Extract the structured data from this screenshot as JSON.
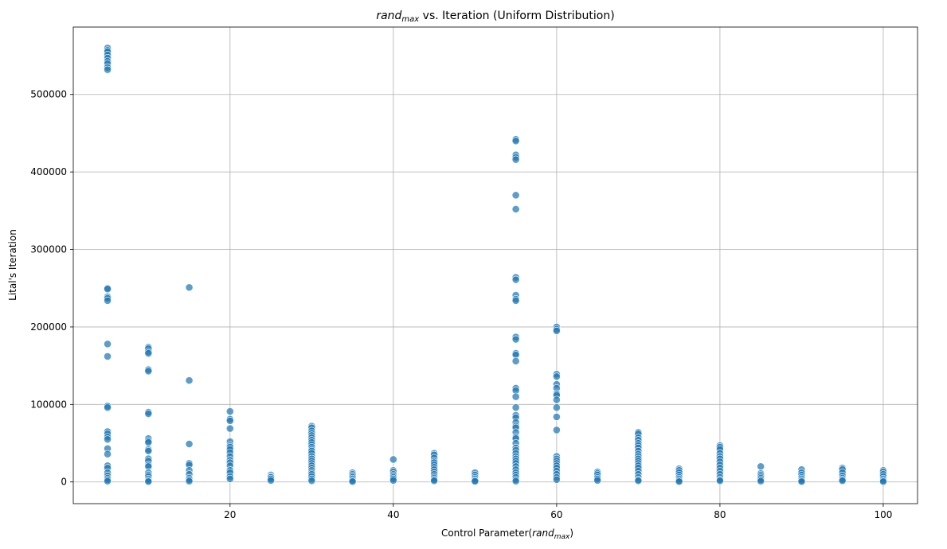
{
  "chart_data": {
    "type": "scatter",
    "title_italic": "rand",
    "title_sub": "max",
    "title_rest": " vs. Iteration (Uniform Distribution)",
    "xlabel_prefix": "Control Parameter(",
    "xlabel_italic": "rand",
    "xlabel_sub": "max",
    "xlabel_suffix": ")",
    "ylabel": "Lital's Iteration",
    "xlim": [
      0.8,
      104.2
    ],
    "ylim": [
      -28000,
      587000
    ],
    "xticks": [
      20,
      40,
      60,
      80,
      100
    ],
    "xtick_labels": [
      "20",
      "40",
      "60",
      "80",
      "100"
    ],
    "yticks": [
      0,
      100000,
      200000,
      300000,
      400000,
      500000
    ],
    "ytick_labels": [
      "0",
      "100000",
      "200000",
      "300000",
      "400000",
      "500000"
    ],
    "grid": true,
    "marker_color": "#1f77b4",
    "columns": [
      {
        "x": 5,
        "y": [
          560000,
          557000,
          555000,
          551000,
          547000,
          543000,
          540000,
          535000,
          532000,
          250000,
          249000,
          239000,
          237000,
          234000,
          178000,
          162000,
          98000,
          96000,
          65000,
          62000,
          58000,
          55000,
          43000,
          36000,
          21000,
          18000,
          12000,
          8000,
          5000,
          3000,
          1000
        ]
      },
      {
        "x": 10,
        "y": [
          174000,
          172000,
          168000,
          166000,
          145000,
          143000,
          90000,
          88000,
          56000,
          53000,
          51000,
          42000,
          40000,
          30000,
          27000,
          22000,
          20000,
          12000,
          9000,
          7000,
          4000,
          2000,
          500
        ]
      },
      {
        "x": 15,
        "y": [
          251000,
          131000,
          49000,
          24000,
          22000,
          15000,
          10000,
          5000,
          3000,
          1000
        ]
      },
      {
        "x": 20,
        "y": [
          91000,
          81000,
          79000,
          69000,
          52000,
          47000,
          45000,
          42000,
          38000,
          33000,
          28000,
          25000,
          21000,
          15000,
          12000,
          7000,
          4000
        ]
      },
      {
        "x": 25,
        "y": [
          9000,
          7000,
          6000,
          4000,
          2000
        ]
      },
      {
        "x": 30,
        "y": [
          72000,
          70000,
          66000,
          63000,
          60000,
          57000,
          54000,
          51000,
          48000,
          45000,
          42000,
          40000,
          37000,
          33000,
          30000,
          27000,
          24000,
          21000,
          18000,
          15000,
          12000,
          10000,
          7000,
          4000,
          1500
        ]
      },
      {
        "x": 35,
        "y": [
          12000,
          10000,
          8000,
          6000,
          4000,
          2000,
          500
        ]
      },
      {
        "x": 40,
        "y": [
          29000,
          15000,
          13000,
          10000,
          8000,
          6000,
          4000,
          2000
        ]
      },
      {
        "x": 45,
        "y": [
          37000,
          35000,
          31000,
          27000,
          25000,
          22000,
          19000,
          16000,
          13000,
          10000,
          7000,
          5000,
          3000,
          1500
        ]
      },
      {
        "x": 50,
        "y": [
          12000,
          9000,
          6000,
          4000,
          2000,
          800
        ]
      },
      {
        "x": 55,
        "y": [
          442000,
          440000,
          422000,
          419000,
          416000,
          370000,
          352000,
          264000,
          261000,
          241000,
          236000,
          234000,
          187000,
          184000,
          166000,
          164000,
          156000,
          121000,
          118000,
          110000,
          96000,
          86000,
          83000,
          77000,
          72000,
          70000,
          64000,
          58000,
          56000,
          50000,
          44000,
          41000,
          37000,
          33000,
          30000,
          27000,
          24000,
          20000,
          16000,
          12000,
          9000,
          6000,
          3000,
          1000
        ]
      },
      {
        "x": 60,
        "y": [
          200000,
          197000,
          195000,
          139000,
          136000,
          126000,
          121000,
          114000,
          112000,
          106000,
          96000,
          84000,
          67000,
          33000,
          30000,
          27000,
          24000,
          21000,
          18000,
          14000,
          10000,
          6000,
          3000
        ]
      },
      {
        "x": 65,
        "y": [
          13000,
          11000,
          9000,
          6000,
          4000,
          2000
        ]
      },
      {
        "x": 70,
        "y": [
          64000,
          62000,
          57000,
          54000,
          50000,
          47000,
          44000,
          40000,
          36000,
          33000,
          30000,
          27000,
          24000,
          21000,
          18000,
          14000,
          10000,
          6000,
          3000,
          1500
        ]
      },
      {
        "x": 75,
        "y": [
          17000,
          15000,
          12000,
          9000,
          6000,
          4000,
          2000,
          500
        ]
      },
      {
        "x": 80,
        "y": [
          47000,
          45000,
          42000,
          37000,
          33000,
          30000,
          26000,
          22000,
          18000,
          14000,
          10000,
          6000,
          3000,
          1500
        ]
      },
      {
        "x": 85,
        "y": [
          20000,
          11000,
          9000,
          7000,
          5000,
          3000,
          1000
        ]
      },
      {
        "x": 90,
        "y": [
          16000,
          12000,
          9000,
          6000,
          4000,
          2000,
          500
        ]
      },
      {
        "x": 95,
        "y": [
          18000,
          16000,
          12000,
          8000,
          5000,
          3000,
          1500
        ]
      },
      {
        "x": 100,
        "y": [
          15000,
          13000,
          10000,
          7000,
          4000,
          2000,
          500
        ]
      }
    ]
  }
}
